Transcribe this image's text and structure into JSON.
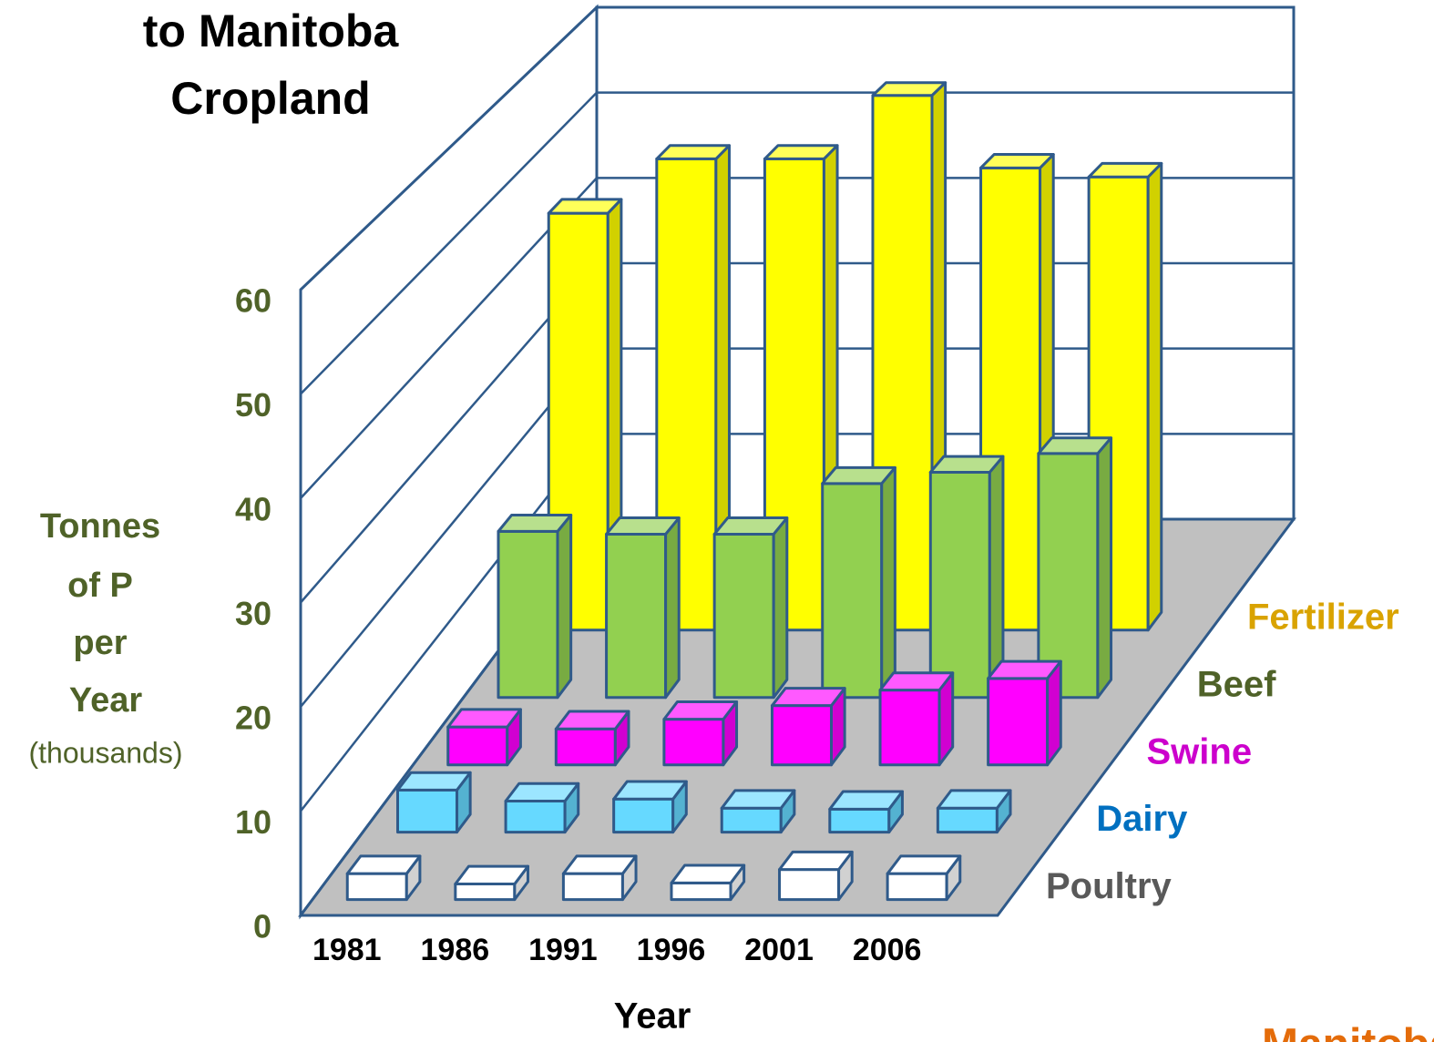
{
  "chart_data": {
    "type": "bar3d",
    "title": [
      "to Manitoba",
      "Cropland"
    ],
    "ylabel": [
      "Tonnes",
      "of P",
      "per",
      "Year"
    ],
    "ylabel_unit": "(thousands)",
    "xlabel": "Year",
    "logo": "Manitoba",
    "categories": [
      "1981",
      "1986",
      "1991",
      "1996",
      "2001",
      "2006"
    ],
    "series": [
      {
        "name": "Fertilizer",
        "color": "#ffff00",
        "label_color": "#d9a300",
        "values": [
          46,
          52,
          52,
          59,
          51,
          50
        ]
      },
      {
        "name": "Beef",
        "color": "#92d050",
        "label_color": "#4f6228",
        "values": [
          17.7,
          17.4,
          17.4,
          22.8,
          24,
          26
        ]
      },
      {
        "name": "Swine",
        "color": "#ff00ff",
        "label_color": "#cc00cc",
        "values": [
          3.9,
          3.7,
          4.7,
          6.1,
          7.7,
          8.9
        ]
      },
      {
        "name": "Dairy",
        "color": "#66d9ff",
        "label_color": "#0070c0",
        "values": [
          4.2,
          3.1,
          3.3,
          2.4,
          2.3,
          2.4
        ]
      },
      {
        "name": "Poultry",
        "color": "#ffffff",
        "label_color": "#595959",
        "values": [
          2.5,
          1.5,
          2.5,
          1.6,
          2.9,
          2.5
        ]
      }
    ],
    "ylim": [
      0,
      60
    ],
    "yticks": [
      0,
      10,
      20,
      30,
      40,
      50,
      60
    ],
    "grid": true
  }
}
